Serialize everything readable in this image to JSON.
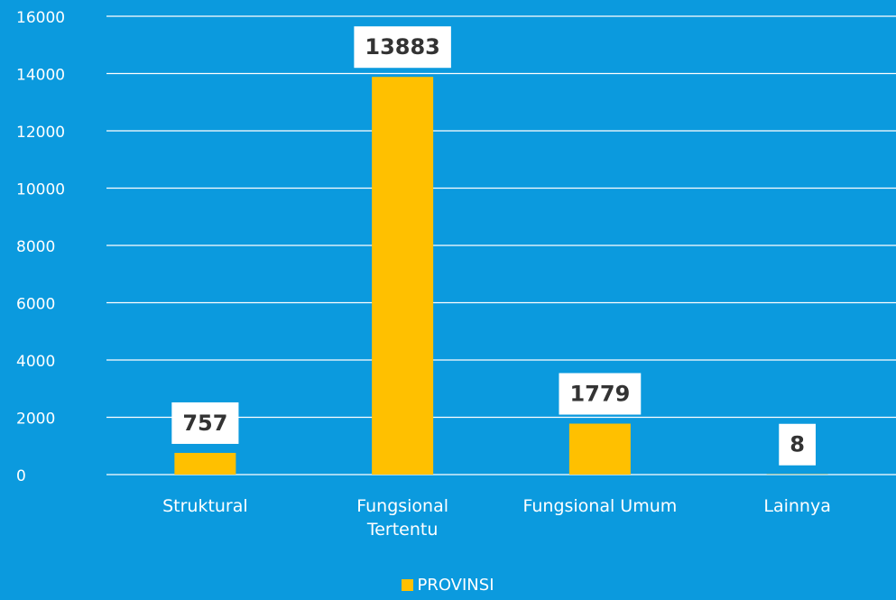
{
  "chart_data": {
    "type": "bar",
    "categories": [
      "Struktural",
      "Fungsional Tertentu",
      "Fungsional Umum",
      "Lainnya"
    ],
    "series": [
      {
        "name": "PROVINSI",
        "color": "#ffc000",
        "values": [
          757,
          13883,
          1779,
          8
        ]
      }
    ],
    "ylim": [
      0,
      16000
    ],
    "yticks": [
      0,
      2000,
      4000,
      6000,
      8000,
      10000,
      12000,
      14000,
      16000
    ],
    "grid": true,
    "legend": "bottom"
  }
}
